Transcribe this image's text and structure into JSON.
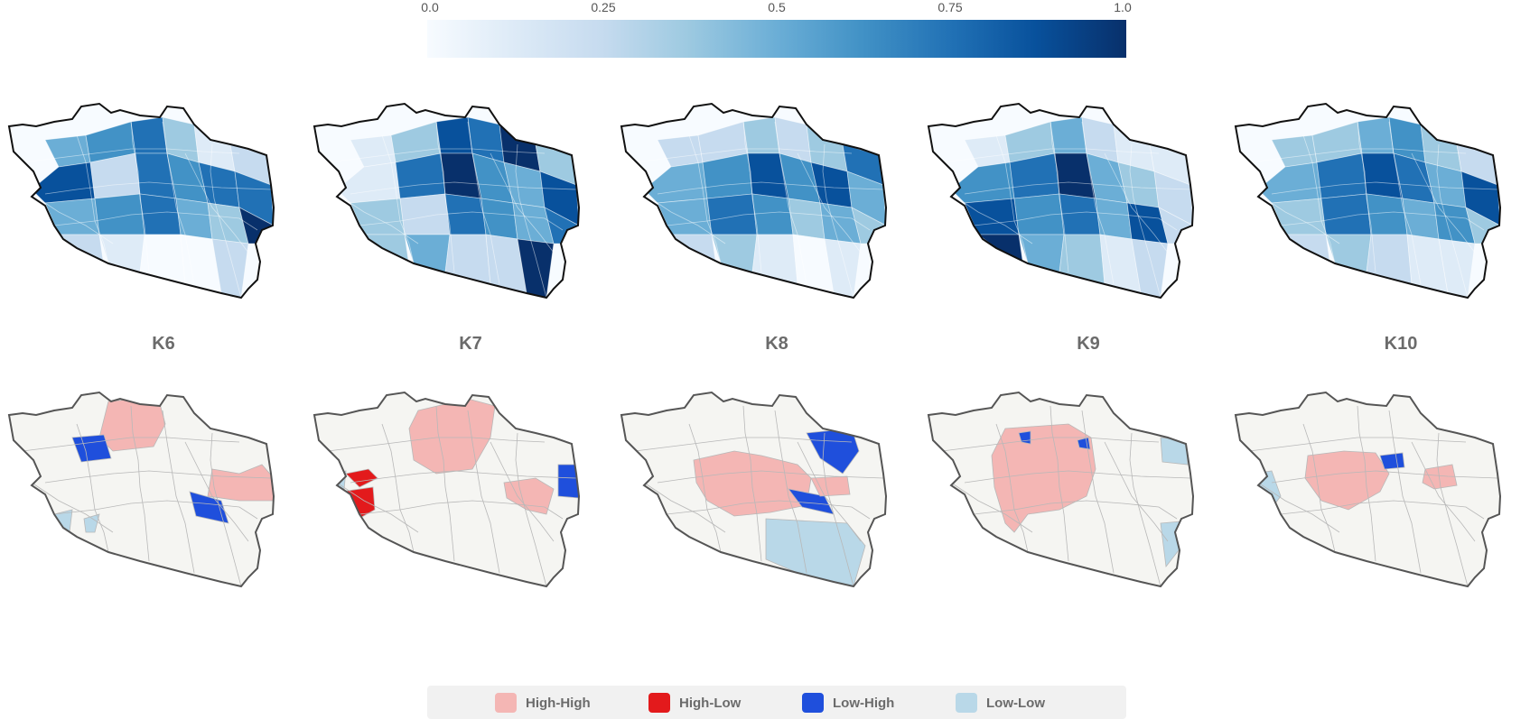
{
  "colorbar": {
    "ticks": [
      "0.0",
      "0.25",
      "0.5",
      "0.75",
      "1.0"
    ],
    "colors": [
      "#f7fbff",
      "#deebf7",
      "#c6dbef",
      "#9ecae1",
      "#6baed6",
      "#4292c6",
      "#2171b5",
      "#08519c",
      "#08306b"
    ]
  },
  "maps": [
    {
      "label": "K6"
    },
    {
      "label": "K7"
    },
    {
      "label": "K8"
    },
    {
      "label": "K9"
    },
    {
      "label": "K10"
    }
  ],
  "legend": {
    "items": [
      {
        "label": "High-High",
        "color": "#f4b6b4"
      },
      {
        "label": "High-Low",
        "color": "#e31a1c"
      },
      {
        "label": "Low-High",
        "color": "#1f4fdc"
      },
      {
        "label": "Low-Low",
        "color": "#b9d8e8"
      }
    ],
    "neutral_color": "#f5f5f2"
  }
}
